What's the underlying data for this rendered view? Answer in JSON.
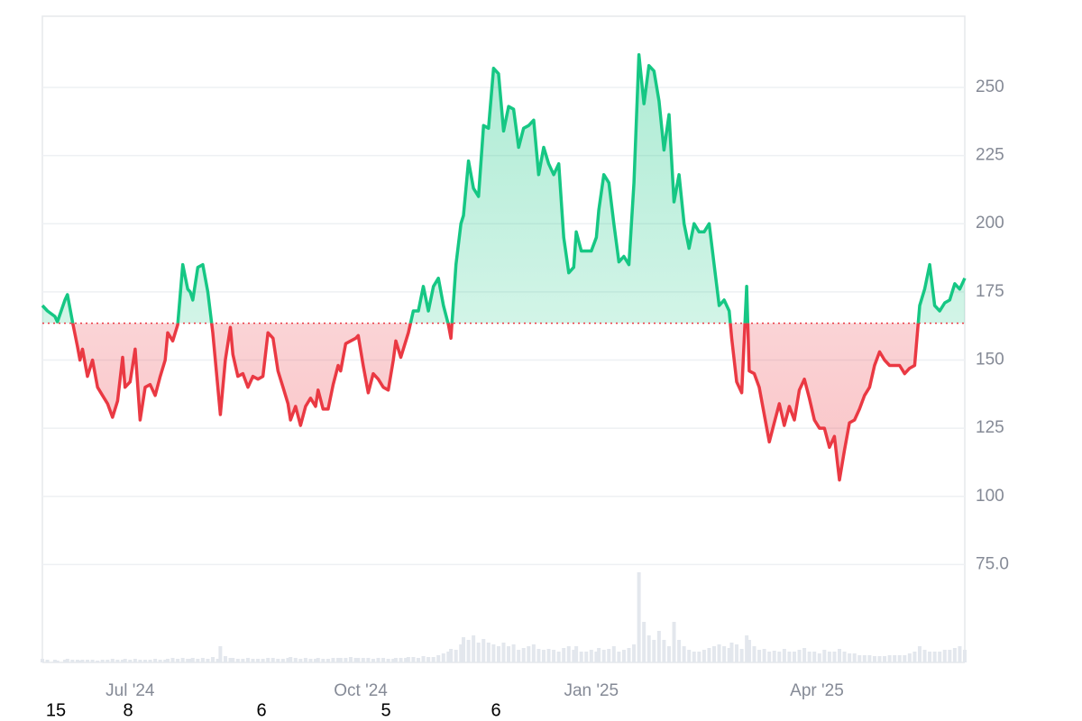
{
  "chart_data": {
    "type": "baseline-line",
    "x": [
      0,
      2,
      5,
      6,
      9,
      10,
      12,
      14,
      15,
      16,
      18,
      20,
      22,
      24,
      26,
      28,
      30,
      32,
      33,
      35,
      37,
      39,
      41,
      43,
      45,
      47,
      49,
      50,
      52,
      54,
      56,
      58,
      59,
      60,
      62,
      64,
      66,
      68,
      70,
      71,
      73,
      75,
      76,
      78,
      80,
      82,
      84,
      86,
      88,
      90,
      92,
      94,
      96,
      98,
      99,
      101,
      103,
      105,
      107,
      109,
      110,
      112,
      114,
      116,
      118,
      119,
      121,
      123,
      125,
      126,
      128,
      130,
      132,
      134,
      136,
      138,
      140,
      141,
      143,
      145,
      146,
      148,
      150,
      152,
      154,
      156,
      158,
      160,
      162,
      163,
      165,
      167,
      168,
      170,
      172,
      174,
      176,
      178,
      180,
      182,
      184,
      186,
      188,
      190,
      192,
      194,
      196,
      198,
      200,
      202,
      204,
      206,
      208,
      210,
      212,
      213,
      215,
      217,
      219,
      221,
      222,
      224,
      226,
      228,
      230,
      232,
      234,
      236,
      238,
      240,
      242,
      244,
      246,
      248,
      250,
      252,
      254,
      256,
      258,
      260,
      262,
      264,
      266,
      268,
      270,
      272,
      274,
      275,
      277,
      279,
      281,
      282,
      284,
      286,
      288,
      290,
      292,
      294,
      296,
      298,
      300,
      302,
      304,
      306,
      308,
      310,
      312,
      314,
      316,
      318,
      320,
      322,
      324,
      326,
      328,
      330,
      332,
      334,
      336,
      338,
      340,
      342,
      344,
      346,
      348,
      350,
      352,
      354,
      356,
      358,
      360,
      362,
      364,
      366,
      368
    ],
    "values": [
      170,
      168,
      166,
      164,
      172,
      174,
      164,
      155,
      150,
      154,
      144,
      150,
      140,
      137,
      134,
      129,
      135,
      151,
      140,
      142,
      154,
      128,
      140,
      141,
      137,
      144,
      150,
      160,
      157,
      163,
      185,
      176,
      175,
      172,
      184,
      185,
      175,
      160,
      140,
      130,
      150,
      162,
      152,
      144,
      145,
      140,
      144,
      143,
      144,
      160,
      158,
      146,
      140,
      134,
      128,
      133,
      126,
      133,
      136,
      133,
      139,
      132,
      132,
      141,
      148,
      146,
      156,
      157,
      158,
      159,
      148,
      138,
      145,
      143,
      140,
      139,
      150,
      157,
      151,
      157,
      160,
      168,
      168,
      177,
      168,
      177,
      180,
      170,
      163,
      158,
      185,
      200,
      203,
      223,
      213,
      210,
      236,
      235,
      257,
      255,
      234,
      243,
      242,
      228,
      235,
      236,
      238,
      218,
      228,
      222,
      218,
      222,
      195,
      182,
      184,
      197,
      190,
      190,
      190,
      195,
      205,
      218,
      215,
      200,
      186,
      188,
      185,
      215,
      262,
      244,
      258,
      256,
      245,
      227,
      240,
      208,
      218,
      200,
      191,
      200,
      197,
      197,
      200,
      185,
      170,
      172,
      168,
      158,
      142,
      138,
      177,
      146,
      145,
      140,
      130,
      120,
      127,
      134,
      126,
      133,
      128,
      139,
      143,
      136,
      128,
      125,
      125,
      118,
      122,
      106,
      117,
      127,
      128,
      132,
      137,
      140,
      148,
      153,
      150,
      148,
      148,
      148,
      145,
      147,
      148,
      170,
      176,
      185,
      170,
      168,
      171,
      172,
      178,
      176,
      180
    ],
    "volume": [
      4,
      3,
      3,
      2,
      3,
      4,
      3,
      3,
      2,
      3,
      3,
      3,
      2,
      3,
      3,
      4,
      3,
      3,
      4,
      3,
      4,
      3,
      3,
      3,
      4,
      3,
      3,
      4,
      5,
      4,
      5,
      4,
      4,
      5,
      4,
      5,
      4,
      6,
      4,
      18,
      7,
      5,
      5,
      4,
      4,
      5,
      4,
      4,
      4,
      5,
      5,
      4,
      4,
      5,
      6,
      5,
      4,
      5,
      4,
      4,
      5,
      4,
      4,
      5,
      5,
      5,
      5,
      6,
      5,
      5,
      5,
      5,
      4,
      5,
      5,
      4,
      4,
      5,
      5,
      5,
      6,
      6,
      5,
      7,
      6,
      6,
      8,
      10,
      12,
      15,
      14,
      20,
      28,
      25,
      30,
      22,
      26,
      22,
      20,
      18,
      22,
      18,
      20,
      14,
      16,
      18,
      20,
      15,
      14,
      15,
      14,
      12,
      16,
      18,
      14,
      18,
      12,
      12,
      14,
      12,
      16,
      14,
      15,
      18,
      12,
      14,
      16,
      20,
      100,
      45,
      30,
      25,
      35,
      25,
      18,
      45,
      25,
      18,
      14,
      12,
      12,
      14,
      16,
      18,
      20,
      18,
      16,
      22,
      20,
      15,
      30,
      25,
      18,
      14,
      15,
      12,
      13,
      12,
      15,
      12,
      12,
      14,
      16,
      12,
      12,
      10,
      14,
      12,
      12,
      15,
      12,
      10,
      10,
      8,
      8,
      8,
      7,
      7,
      7,
      8,
      8,
      8,
      8,
      10,
      12,
      18,
      14,
      12,
      12,
      12,
      14,
      14,
      16,
      18,
      14
    ],
    "baseline": 163.5,
    "up_color": "#16c784",
    "down_color": "#ea3943",
    "volume_color": "#e3e7ed",
    "xlim": [
      0,
      368
    ],
    "xticks": [
      {
        "value": 35,
        "label": "Jul '24"
      },
      {
        "value": 127,
        "label": "Oct '24"
      },
      {
        "value": 219,
        "label": "Jan '25"
      },
      {
        "value": 309,
        "label": "Apr '25"
      }
    ],
    "ylim": [
      39.1,
      276.1
    ],
    "yticks": [
      {
        "value": 75,
        "label": "75.0"
      },
      100,
      125,
      150,
      175,
      200,
      225,
      250
    ],
    "grid": true,
    "footer_labels": [
      "15",
      "8",
      "6",
      "5",
      "6"
    ]
  }
}
